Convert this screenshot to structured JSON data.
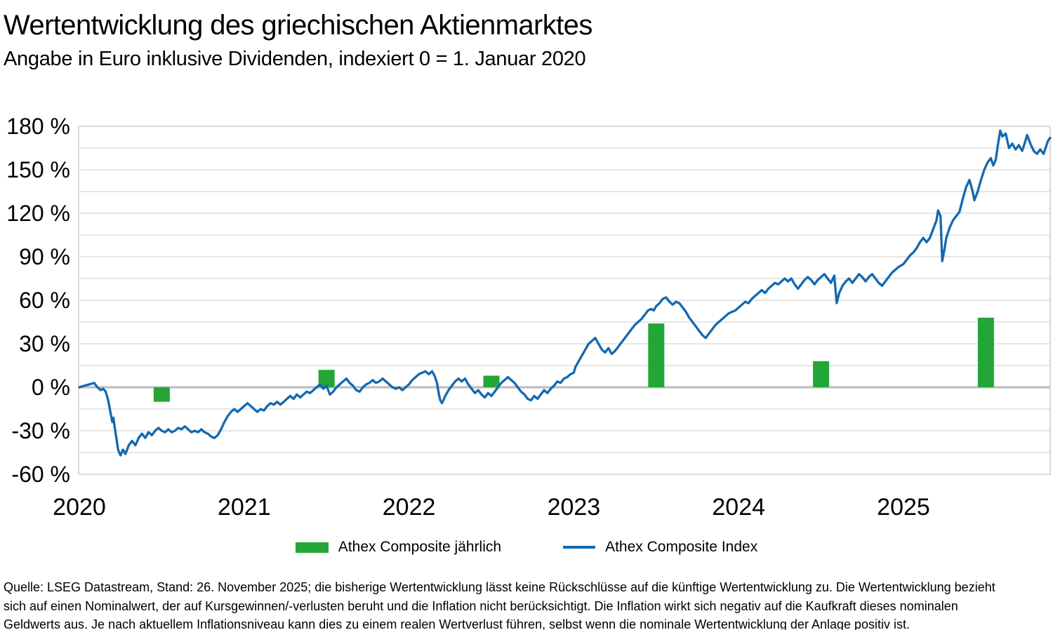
{
  "header": {
    "title": "Wertentwicklung des griechischen Aktienmarktes",
    "subtitle": "Angabe in Euro inklusive Dividenden, indexiert 0 = 1. Januar 2020"
  },
  "legend": [
    {
      "label": "Athex Composite jährlich",
      "type": "bar",
      "color": "#23a636"
    },
    {
      "label": "Athex Composite Index",
      "type": "line",
      "color": "#1368b1"
    }
  ],
  "footer": {
    "lines": [
      "Quelle: LSEG Datastream, Stand: 26. November 2025; die bisherige Wertentwicklung lässt keine Rückschlüsse auf die künftige Wertentwicklung zu. Die Wertentwicklung bezieht",
      "sich auf einen Nominalwert, der auf Kursgewinnen/-verlusten beruht und die Inflation nicht berücksichtigt. Die Inflation wirkt sich negativ auf die Kaufkraft dieses nominalen",
      "Geldwerts aus. Je nach aktuellem Inflationsniveau kann dies zu einem realen Wertverlust führen, selbst wenn die nominale Wertentwicklung der Anlage positiv ist."
    ]
  },
  "chart_data": {
    "type": "line+bar",
    "title": "Wertentwicklung des griechischen Aktienmarktes",
    "subtitle": "Angabe in Euro inklusive Dividenden, indexiert 0 = 1. Januar 2020",
    "unit": "%",
    "y_axis": {
      "min": -60,
      "max": 180,
      "major_step": 30,
      "minor_step": 15,
      "tick_values": [
        180,
        150,
        120,
        90,
        60,
        30,
        0,
        -30,
        -60
      ],
      "tick_labels": [
        "180 %",
        "150 %",
        "120 %",
        "90 %",
        "60 %",
        "30 %",
        "0 %",
        "-30 %",
        "-60 %"
      ],
      "grid": "on"
    },
    "x_axis": {
      "tick_labels": [
        "2020",
        "2021",
        "2022",
        "2023",
        "2024",
        "2025"
      ]
    },
    "legend_position": "bottom-center",
    "bars": {
      "name": "Athex Composite jährlich",
      "values": [
        {
          "year": "2020",
          "value": -10
        },
        {
          "year": "2021",
          "value": 12
        },
        {
          "year": "2022",
          "value": 8
        },
        {
          "year": "2023",
          "value": 44
        },
        {
          "year": "2024",
          "value": 18
        },
        {
          "year": "2025",
          "value": 48
        }
      ]
    },
    "line": {
      "name": "Athex Composite Index",
      "x_unit": "years_since_2020",
      "points": [
        [
          0,
          0
        ],
        [
          0.03,
          1
        ],
        [
          0.06,
          2
        ],
        [
          0.09,
          3
        ],
        [
          0.11,
          0
        ],
        [
          0.13,
          -2
        ],
        [
          0.145,
          -1
        ],
        [
          0.16,
          -3
        ],
        [
          0.175,
          -9
        ],
        [
          0.19,
          -18
        ],
        [
          0.2,
          -24
        ],
        [
          0.207,
          -21
        ],
        [
          0.215,
          -28
        ],
        [
          0.225,
          -35
        ],
        [
          0.235,
          -43
        ],
        [
          0.25,
          -47
        ],
        [
          0.265,
          -43
        ],
        [
          0.28,
          -46
        ],
        [
          0.3,
          -40
        ],
        [
          0.32,
          -37
        ],
        [
          0.34,
          -40
        ],
        [
          0.36,
          -35
        ],
        [
          0.38,
          -32
        ],
        [
          0.4,
          -35
        ],
        [
          0.42,
          -31
        ],
        [
          0.44,
          -33
        ],
        [
          0.46,
          -30
        ],
        [
          0.48,
          -28
        ],
        [
          0.5,
          -30
        ],
        [
          0.52,
          -31
        ],
        [
          0.54,
          -29
        ],
        [
          0.56,
          -31
        ],
        [
          0.58,
          -30
        ],
        [
          0.6,
          -28
        ],
        [
          0.62,
          -29
        ],
        [
          0.64,
          -27
        ],
        [
          0.66,
          -29
        ],
        [
          0.68,
          -31
        ],
        [
          0.7,
          -30
        ],
        [
          0.72,
          -31
        ],
        [
          0.74,
          -29
        ],
        [
          0.76,
          -31
        ],
        [
          0.78,
          -32
        ],
        [
          0.8,
          -34
        ],
        [
          0.82,
          -35
        ],
        [
          0.84,
          -33
        ],
        [
          0.86,
          -29
        ],
        [
          0.88,
          -24
        ],
        [
          0.9,
          -20
        ],
        [
          0.92,
          -17
        ],
        [
          0.94,
          -15
        ],
        [
          0.96,
          -17
        ],
        [
          0.98,
          -15
        ],
        [
          1,
          -13
        ],
        [
          1.02,
          -11
        ],
        [
          1.04,
          -13
        ],
        [
          1.06,
          -15
        ],
        [
          1.08,
          -17
        ],
        [
          1.1,
          -15
        ],
        [
          1.12,
          -16
        ],
        [
          1.14,
          -13
        ],
        [
          1.16,
          -11
        ],
        [
          1.18,
          -12
        ],
        [
          1.2,
          -10
        ],
        [
          1.22,
          -12
        ],
        [
          1.24,
          -10
        ],
        [
          1.26,
          -8
        ],
        [
          1.28,
          -6
        ],
        [
          1.3,
          -8
        ],
        [
          1.32,
          -5
        ],
        [
          1.34,
          -7
        ],
        [
          1.36,
          -5
        ],
        [
          1.38,
          -3
        ],
        [
          1.4,
          -4
        ],
        [
          1.42,
          -2
        ],
        [
          1.44,
          0
        ],
        [
          1.46,
          2
        ],
        [
          1.48,
          -1
        ],
        [
          1.5,
          1
        ],
        [
          1.52,
          -5
        ],
        [
          1.54,
          -3
        ],
        [
          1.56,
          0
        ],
        [
          1.58,
          2
        ],
        [
          1.6,
          4
        ],
        [
          1.62,
          6
        ],
        [
          1.64,
          3
        ],
        [
          1.66,
          1
        ],
        [
          1.68,
          -2
        ],
        [
          1.7,
          -3
        ],
        [
          1.72,
          0
        ],
        [
          1.74,
          2
        ],
        [
          1.76,
          3
        ],
        [
          1.78,
          5
        ],
        [
          1.8,
          3
        ],
        [
          1.82,
          4
        ],
        [
          1.84,
          6
        ],
        [
          1.86,
          4
        ],
        [
          1.88,
          2
        ],
        [
          1.9,
          0
        ],
        [
          1.92,
          -1
        ],
        [
          1.94,
          0
        ],
        [
          1.96,
          -2
        ],
        [
          1.98,
          0
        ],
        [
          2,
          2
        ],
        [
          2.02,
          5
        ],
        [
          2.04,
          7
        ],
        [
          2.06,
          9
        ],
        [
          2.08,
          10
        ],
        [
          2.1,
          11
        ],
        [
          2.12,
          9
        ],
        [
          2.14,
          11
        ],
        [
          2.155,
          8
        ],
        [
          2.17,
          3
        ],
        [
          2.18,
          -4
        ],
        [
          2.19,
          -9
        ],
        [
          2.2,
          -11
        ],
        [
          2.22,
          -6
        ],
        [
          2.24,
          -2
        ],
        [
          2.26,
          1
        ],
        [
          2.28,
          4
        ],
        [
          2.3,
          6
        ],
        [
          2.32,
          4
        ],
        [
          2.34,
          6
        ],
        [
          2.36,
          2
        ],
        [
          2.38,
          -1
        ],
        [
          2.4,
          -4
        ],
        [
          2.42,
          -2
        ],
        [
          2.44,
          -5
        ],
        [
          2.46,
          -7
        ],
        [
          2.48,
          -4
        ],
        [
          2.5,
          -6
        ],
        [
          2.52,
          -3
        ],
        [
          2.54,
          0
        ],
        [
          2.56,
          3
        ],
        [
          2.58,
          5
        ],
        [
          2.6,
          7
        ],
        [
          2.62,
          5
        ],
        [
          2.64,
          3
        ],
        [
          2.66,
          0
        ],
        [
          2.68,
          -3
        ],
        [
          2.7,
          -5
        ],
        [
          2.72,
          -8
        ],
        [
          2.74,
          -9
        ],
        [
          2.76,
          -6
        ],
        [
          2.78,
          -8
        ],
        [
          2.8,
          -5
        ],
        [
          2.82,
          -2
        ],
        [
          2.84,
          -4
        ],
        [
          2.86,
          -1
        ],
        [
          2.88,
          1
        ],
        [
          2.9,
          4
        ],
        [
          2.92,
          3
        ],
        [
          2.94,
          6
        ],
        [
          2.96,
          7
        ],
        [
          2.98,
          9
        ],
        [
          3,
          10
        ],
        [
          3.01,
          14
        ],
        [
          3.03,
          18
        ],
        [
          3.05,
          22
        ],
        [
          3.07,
          26
        ],
        [
          3.09,
          30
        ],
        [
          3.11,
          32
        ],
        [
          3.13,
          34
        ],
        [
          3.15,
          30
        ],
        [
          3.17,
          26
        ],
        [
          3.19,
          24
        ],
        [
          3.21,
          27
        ],
        [
          3.23,
          23
        ],
        [
          3.25,
          25
        ],
        [
          3.27,
          28
        ],
        [
          3.29,
          31
        ],
        [
          3.31,
          34
        ],
        [
          3.33,
          37
        ],
        [
          3.35,
          40
        ],
        [
          3.37,
          43
        ],
        [
          3.39,
          45
        ],
        [
          3.41,
          47
        ],
        [
          3.43,
          50
        ],
        [
          3.45,
          53
        ],
        [
          3.47,
          54
        ],
        [
          3.485,
          53
        ],
        [
          3.5,
          56
        ],
        [
          3.52,
          58
        ],
        [
          3.54,
          61
        ],
        [
          3.56,
          62
        ],
        [
          3.58,
          59
        ],
        [
          3.6,
          57
        ],
        [
          3.62,
          59
        ],
        [
          3.64,
          58
        ],
        [
          3.66,
          55
        ],
        [
          3.68,
          52
        ],
        [
          3.7,
          48
        ],
        [
          3.72,
          45
        ],
        [
          3.74,
          42
        ],
        [
          3.76,
          39
        ],
        [
          3.78,
          36
        ],
        [
          3.8,
          34
        ],
        [
          3.82,
          37
        ],
        [
          3.84,
          40
        ],
        [
          3.86,
          43
        ],
        [
          3.88,
          45
        ],
        [
          3.9,
          47
        ],
        [
          3.92,
          49
        ],
        [
          3.94,
          51
        ],
        [
          3.96,
          52
        ],
        [
          3.98,
          53
        ],
        [
          4,
          55
        ],
        [
          4.02,
          57
        ],
        [
          4.04,
          59
        ],
        [
          4.06,
          58
        ],
        [
          4.08,
          61
        ],
        [
          4.1,
          63
        ],
        [
          4.12,
          65
        ],
        [
          4.14,
          67
        ],
        [
          4.16,
          65
        ],
        [
          4.18,
          68
        ],
        [
          4.2,
          70
        ],
        [
          4.22,
          72
        ],
        [
          4.24,
          71
        ],
        [
          4.26,
          73
        ],
        [
          4.28,
          75
        ],
        [
          4.3,
          73
        ],
        [
          4.32,
          75
        ],
        [
          4.34,
          71
        ],
        [
          4.36,
          68
        ],
        [
          4.38,
          71
        ],
        [
          4.4,
          74
        ],
        [
          4.42,
          76
        ],
        [
          4.44,
          74
        ],
        [
          4.46,
          71
        ],
        [
          4.48,
          74
        ],
        [
          4.5,
          76
        ],
        [
          4.52,
          78
        ],
        [
          4.54,
          75
        ],
        [
          4.56,
          72
        ],
        [
          4.58,
          77
        ],
        [
          4.595,
          58
        ],
        [
          4.61,
          65
        ],
        [
          4.63,
          70
        ],
        [
          4.65,
          73
        ],
        [
          4.67,
          75
        ],
        [
          4.69,
          72
        ],
        [
          4.71,
          75
        ],
        [
          4.73,
          78
        ],
        [
          4.75,
          76
        ],
        [
          4.77,
          73
        ],
        [
          4.79,
          76
        ],
        [
          4.81,
          78
        ],
        [
          4.83,
          75
        ],
        [
          4.85,
          72
        ],
        [
          4.87,
          70
        ],
        [
          4.89,
          73
        ],
        [
          4.91,
          76
        ],
        [
          4.93,
          79
        ],
        [
          4.95,
          81
        ],
        [
          4.97,
          83
        ],
        [
          5,
          85
        ],
        [
          5.02,
          88
        ],
        [
          5.04,
          91
        ],
        [
          5.06,
          93
        ],
        [
          5.08,
          96
        ],
        [
          5.1,
          100
        ],
        [
          5.12,
          103
        ],
        [
          5.14,
          100
        ],
        [
          5.16,
          103
        ],
        [
          5.18,
          109
        ],
        [
          5.2,
          115
        ],
        [
          5.21,
          122
        ],
        [
          5.225,
          118
        ],
        [
          5.235,
          87
        ],
        [
          5.25,
          96
        ],
        [
          5.26,
          103
        ],
        [
          5.28,
          110
        ],
        [
          5.3,
          115
        ],
        [
          5.32,
          118
        ],
        [
          5.34,
          121
        ],
        [
          5.36,
          130
        ],
        [
          5.38,
          138
        ],
        [
          5.4,
          143
        ],
        [
          5.42,
          135
        ],
        [
          5.43,
          129
        ],
        [
          5.45,
          135
        ],
        [
          5.47,
          143
        ],
        [
          5.49,
          150
        ],
        [
          5.51,
          155
        ],
        [
          5.53,
          158
        ],
        [
          5.545,
          153
        ],
        [
          5.56,
          157
        ],
        [
          5.574,
          168
        ],
        [
          5.587,
          177
        ],
        [
          5.6,
          173
        ],
        [
          5.62,
          175
        ],
        [
          5.64,
          165
        ],
        [
          5.66,
          168
        ],
        [
          5.68,
          164
        ],
        [
          5.7,
          167
        ],
        [
          5.72,
          163
        ],
        [
          5.74,
          170
        ],
        [
          5.75,
          174
        ],
        [
          5.77,
          168
        ],
        [
          5.79,
          163
        ],
        [
          5.81,
          161
        ],
        [
          5.83,
          164
        ],
        [
          5.85,
          161
        ],
        [
          5.865,
          166
        ],
        [
          5.877,
          170
        ],
        [
          5.89,
          172
        ]
      ]
    },
    "colors": {
      "bar": "#23a636",
      "line": "#1368b1",
      "zero_line": "#bfbfbf",
      "grid": "#d7d7d7",
      "frame": "#c7c7c7",
      "text": "#000000"
    }
  }
}
